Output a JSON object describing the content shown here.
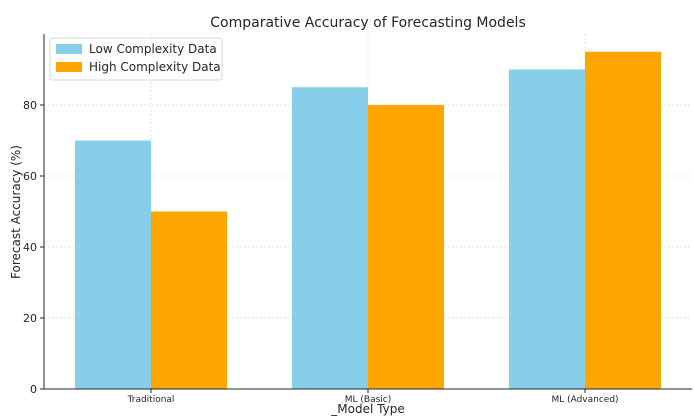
{
  "chart_data": {
    "type": "bar",
    "title": "Comparative Accuracy of Forecasting Models",
    "xlabel": "_Model Type",
    "ylabel": "Forecast Accuracy (%)",
    "categories": [
      "Traditional",
      "ML (Basic)",
      "ML (Advanced)"
    ],
    "series": [
      {
        "name": "Low Complexity Data",
        "values": [
          70,
          85,
          90
        ],
        "color": "#87CEEB"
      },
      {
        "name": "High Complexity Data",
        "values": [
          50,
          80,
          95
        ],
        "color": "#FFA500"
      }
    ],
    "ylim": [
      0,
      100
    ],
    "yticks": [
      0,
      20,
      40,
      60,
      80
    ],
    "grid": true,
    "legend_position": "top-left"
  }
}
